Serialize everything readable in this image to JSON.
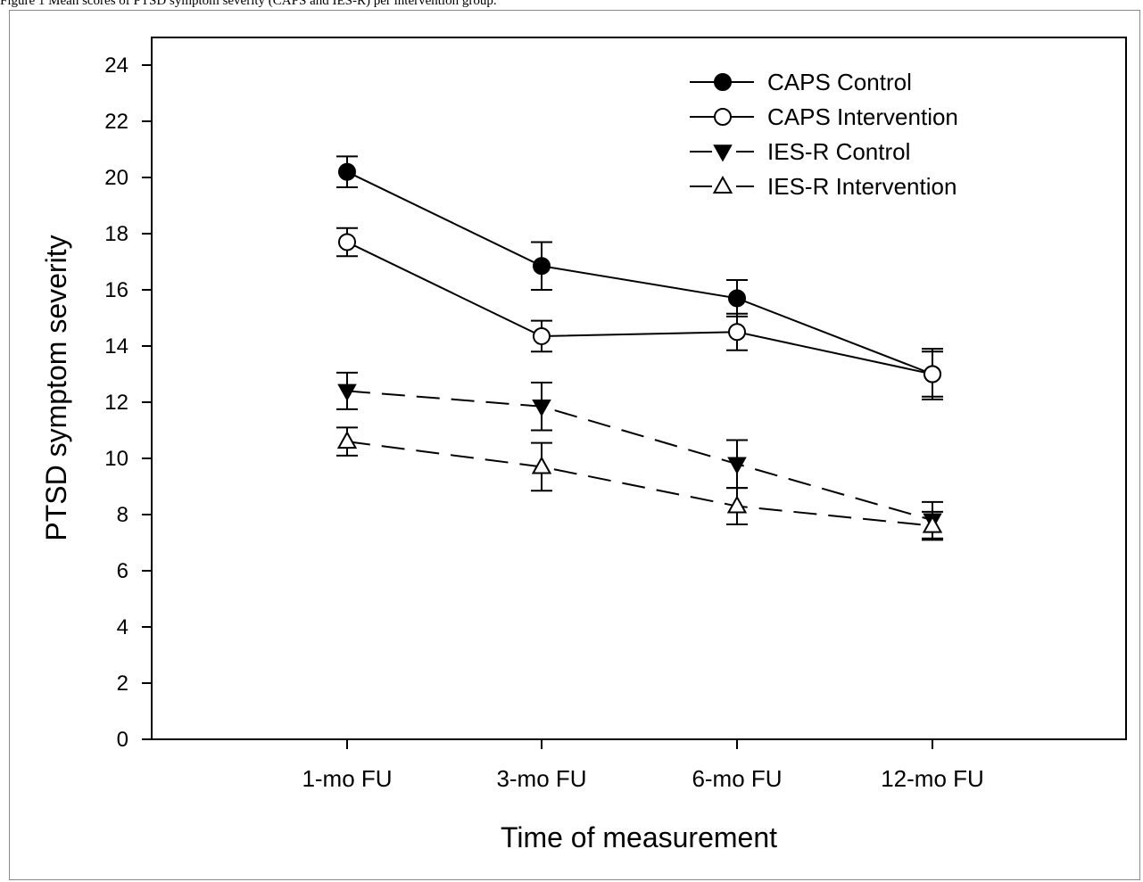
{
  "caption": "Figure 1 Mean scores of PTSD symptom severity (CAPS and IES-R) per intervention group.",
  "chart_data": {
    "type": "line",
    "title": "",
    "xlabel": "Time of measurement",
    "ylabel": "PTSD symptom severity",
    "categories": [
      "1-mo FU",
      "3-mo FU",
      "6-mo FU",
      "12-mo FU"
    ],
    "ylim": [
      0,
      24
    ],
    "yticks": [
      0,
      2,
      4,
      6,
      8,
      10,
      12,
      14,
      16,
      18,
      20,
      22,
      24
    ],
    "grid": false,
    "legend_position": "top-right",
    "series": [
      {
        "name": "CAPS Control",
        "marker": "filled-circle",
        "line": "solid",
        "values": [
          20.2,
          16.85,
          15.7,
          13.0
        ],
        "error": [
          0.55,
          0.85,
          0.65,
          0.9
        ]
      },
      {
        "name": "CAPS Intervention",
        "marker": "open-circle",
        "line": "solid",
        "values": [
          17.7,
          14.35,
          14.5,
          13.0
        ],
        "error": [
          0.5,
          0.55,
          0.65,
          0.8
        ]
      },
      {
        "name": "IES-R Control",
        "marker": "filled-triangle-down",
        "line": "dashed",
        "values": [
          12.4,
          11.85,
          9.8,
          7.8
        ],
        "error": [
          0.65,
          0.85,
          0.85,
          0.65
        ]
      },
      {
        "name": "IES-R Intervention",
        "marker": "open-triangle-up",
        "line": "dashed",
        "values": [
          10.6,
          9.7,
          8.3,
          7.6
        ],
        "error": [
          0.5,
          0.85,
          0.65,
          0.5
        ]
      }
    ]
  }
}
